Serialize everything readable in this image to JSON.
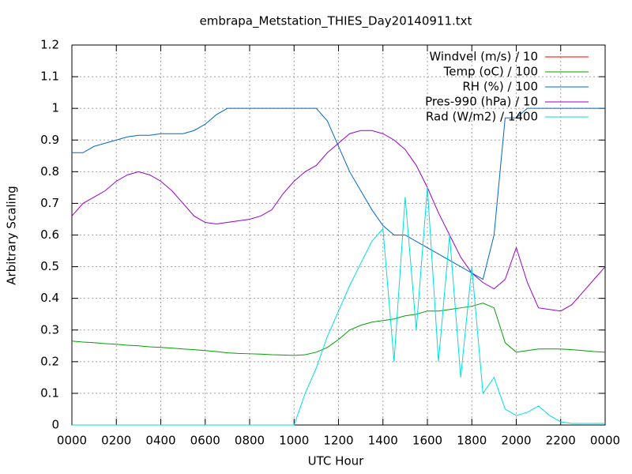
{
  "chart_data": {
    "type": "line",
    "title": "embrapa_Metstation_THIES_Day20140911.txt",
    "x_label": "UTC Hour",
    "y_label": "Arbitrary Scaling",
    "x": [
      0,
      0.5,
      1,
      1.5,
      2,
      2.5,
      3,
      3.5,
      4,
      4.5,
      5,
      5.5,
      6,
      6.5,
      7,
      7.5,
      8,
      8.5,
      9,
      9.5,
      10,
      10.5,
      11,
      11.5,
      12,
      12.5,
      13,
      13.5,
      14,
      14.5,
      15,
      15.5,
      16,
      16.5,
      17,
      17.5,
      18,
      18.5,
      19,
      19.5,
      20,
      20.5,
      21,
      21.5,
      22,
      22.5,
      23,
      23.5,
      24
    ],
    "series": [
      {
        "name": "Windvel (m/s) / 10",
        "color": "#ff0000",
        "values": [
          null,
          null,
          null,
          null,
          null,
          null,
          null,
          null,
          null,
          null,
          null,
          null,
          null,
          null,
          null,
          null,
          null,
          null,
          null,
          null,
          null,
          null,
          null,
          null,
          null,
          null,
          null,
          null,
          null,
          null,
          null,
          null,
          null,
          null,
          null,
          null,
          null,
          null,
          null,
          null,
          null,
          null,
          null,
          null,
          null,
          null,
          null,
          null,
          null
        ]
      },
      {
        "name": "Temp (oC) / 100",
        "color": "#00a000",
        "values": [
          0.265,
          0.262,
          0.26,
          0.257,
          0.255,
          0.252,
          0.25,
          0.247,
          0.245,
          0.243,
          0.24,
          0.238,
          0.235,
          0.232,
          0.228,
          0.226,
          0.225,
          0.224,
          0.222,
          0.221,
          0.22,
          0.222,
          0.23,
          0.245,
          0.27,
          0.3,
          0.315,
          0.325,
          0.33,
          0.335,
          0.345,
          0.35,
          0.36,
          0.36,
          0.365,
          0.37,
          0.375,
          0.385,
          0.37,
          0.26,
          0.23,
          0.235,
          0.24,
          0.24,
          0.24,
          0.238,
          0.235,
          0.232,
          0.23
        ]
      },
      {
        "name": "RH (%) / 100",
        "color": "#0066cc",
        "values": [
          0.86,
          0.86,
          0.88,
          0.89,
          0.9,
          0.91,
          0.915,
          0.915,
          0.92,
          0.92,
          0.92,
          0.93,
          0.95,
          0.98,
          1,
          1,
          1,
          1,
          1,
          1,
          1,
          1,
          1,
          0.96,
          0.88,
          0.8,
          0.74,
          0.68,
          0.63,
          0.6,
          0.6,
          0.58,
          0.56,
          0.54,
          0.52,
          0.5,
          0.48,
          0.46,
          0.6,
          0.97,
          0.97,
          1,
          1,
          1,
          1,
          1,
          1,
          1,
          1
        ]
      },
      {
        "name": "Pres-990 (hPa) / 10",
        "color": "#9900cc",
        "values": [
          0.66,
          0.7,
          0.72,
          0.74,
          0.77,
          0.79,
          0.8,
          0.79,
          0.77,
          0.74,
          0.7,
          0.66,
          0.64,
          0.635,
          0.64,
          0.645,
          0.65,
          0.66,
          0.68,
          0.73,
          0.77,
          0.8,
          0.82,
          0.86,
          0.89,
          0.92,
          0.93,
          0.93,
          0.92,
          0.9,
          0.87,
          0.82,
          0.75,
          0.67,
          0.6,
          0.53,
          0.48,
          0.45,
          0.43,
          0.46,
          0.56,
          0.45,
          0.37,
          0.365,
          0.36,
          0.38,
          0.42,
          0.46,
          0.5
        ]
      },
      {
        "name": "Rad (W/m2) / 1400",
        "color": "#00dddd",
        "values": [
          0,
          0,
          0,
          0,
          0,
          0,
          0,
          0,
          0,
          0,
          0,
          0,
          0,
          0,
          0,
          0,
          0,
          0,
          0,
          0,
          0,
          0.1,
          0.18,
          0.28,
          0.36,
          0.44,
          0.51,
          0.58,
          0.62,
          0.2,
          0.72,
          0.3,
          0.75,
          0.2,
          0.6,
          0.15,
          0.5,
          0.1,
          0.15,
          0.05,
          0.03,
          0.04,
          0.06,
          0.03,
          0.01,
          0.005,
          0.005,
          0.005,
          0.005
        ]
      }
    ],
    "xlim": [
      0,
      24
    ],
    "xticks": [
      {
        "value": 0,
        "label": "0000"
      },
      {
        "value": 2,
        "label": "0200"
      },
      {
        "value": 4,
        "label": "0400"
      },
      {
        "value": 6,
        "label": "0600"
      },
      {
        "value": 8,
        "label": "0800"
      },
      {
        "value": 10,
        "label": "1000"
      },
      {
        "value": 12,
        "label": "1200"
      },
      {
        "value": 14,
        "label": "1400"
      },
      {
        "value": 16,
        "label": "1600"
      },
      {
        "value": 18,
        "label": "1800"
      },
      {
        "value": 20,
        "label": "2000"
      },
      {
        "value": 22,
        "label": "2200"
      },
      {
        "value": 24,
        "label": "0000"
      }
    ],
    "ylim": [
      0,
      1.2
    ],
    "yticks": [
      0,
      0.1,
      0.2,
      0.3,
      0.4,
      0.5,
      0.6,
      0.7,
      0.8,
      0.9,
      1,
      1.1,
      1.2
    ],
    "grid": true,
    "legend": "top-right"
  }
}
